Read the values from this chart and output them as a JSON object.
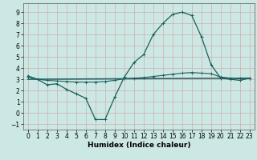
{
  "xlabel": "Humidex (Indice chaleur)",
  "xlim": [
    -0.5,
    23.5
  ],
  "ylim": [
    -1.5,
    9.8
  ],
  "yticks": [
    -1,
    0,
    1,
    2,
    3,
    4,
    5,
    6,
    7,
    8,
    9
  ],
  "xticks": [
    0,
    1,
    2,
    3,
    4,
    5,
    6,
    7,
    8,
    9,
    10,
    11,
    12,
    13,
    14,
    15,
    16,
    17,
    18,
    19,
    20,
    21,
    22,
    23
  ],
  "bg_color": "#cce8e4",
  "grid_color": "#d4a0a0",
  "line_color": "#1a5f5f",
  "curve1_x": [
    0,
    1,
    2,
    3,
    4,
    5,
    6,
    7,
    8,
    9,
    10,
    11,
    12,
    13,
    14,
    15,
    16,
    17,
    18,
    19,
    20,
    21,
    22,
    23
  ],
  "curve1_y": [
    3.3,
    3.0,
    2.5,
    2.6,
    2.1,
    1.7,
    1.3,
    -0.6,
    -0.6,
    1.4,
    3.2,
    4.5,
    5.2,
    7.0,
    8.0,
    8.8,
    9.0,
    8.7,
    6.8,
    4.3,
    3.1,
    3.0,
    2.9,
    3.1
  ],
  "curve2_x": [
    0,
    1,
    2,
    3,
    4,
    5,
    6,
    7,
    8,
    9,
    10,
    11,
    12,
    13,
    14,
    15,
    16,
    17,
    18,
    19,
    20,
    21,
    22,
    23
  ],
  "curve2_y": [
    3.2,
    3.0,
    2.9,
    2.85,
    2.8,
    2.75,
    2.75,
    2.75,
    2.8,
    2.9,
    3.05,
    3.1,
    3.15,
    3.25,
    3.35,
    3.45,
    3.55,
    3.6,
    3.55,
    3.5,
    3.2,
    3.1,
    3.05,
    3.1
  ],
  "curve3_x": [
    0,
    23
  ],
  "curve3_y": [
    3.0,
    3.1
  ],
  "lw1": 0.9,
  "lw2": 0.8,
  "lw3": 1.1,
  "ms": 2.5,
  "font_size": 6.5,
  "tick_font_size": 5.5
}
